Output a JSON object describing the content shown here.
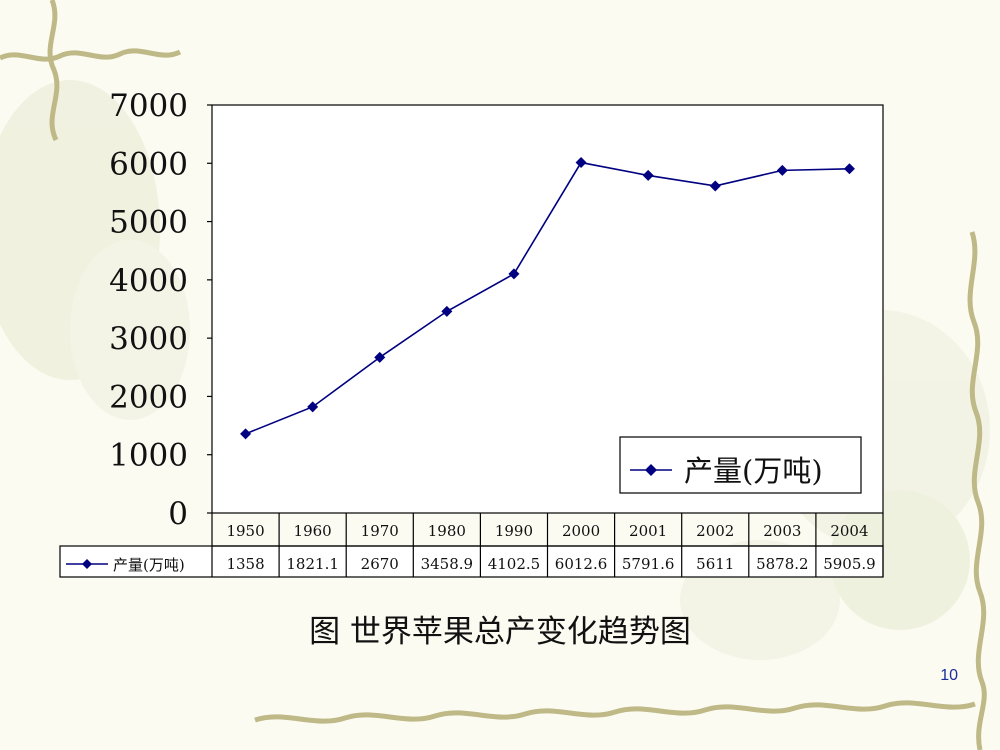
{
  "slide": {
    "caption": "图  世界苹果总产变化趋势图",
    "page_number": "10"
  },
  "chart_data": {
    "type": "line",
    "categories": [
      "1950",
      "1960",
      "1970",
      "1980",
      "1990",
      "2000",
      "2001",
      "2002",
      "2003",
      "2004"
    ],
    "series": [
      {
        "name": "产量(万吨)",
        "values": [
          1358,
          1821.1,
          2670,
          3458.9,
          4102.5,
          6012.6,
          5791.6,
          5611,
          5878.2,
          5905.9
        ],
        "color": "#000080"
      }
    ],
    "value_labels": [
      "1358",
      "1821.1",
      "2670",
      "3458.9",
      "4102.5",
      "6012.6",
      "5791.6",
      "5611",
      "5878.2",
      "5905.9"
    ],
    "yticks": [
      "0",
      "1000",
      "2000",
      "3000",
      "4000",
      "5000",
      "6000",
      "7000"
    ],
    "ylim": [
      0,
      7000
    ],
    "legend": {
      "label": "产量(万吨)",
      "position": "bottom-right"
    },
    "data_table": true,
    "grid": false,
    "line_color": "#000080"
  }
}
